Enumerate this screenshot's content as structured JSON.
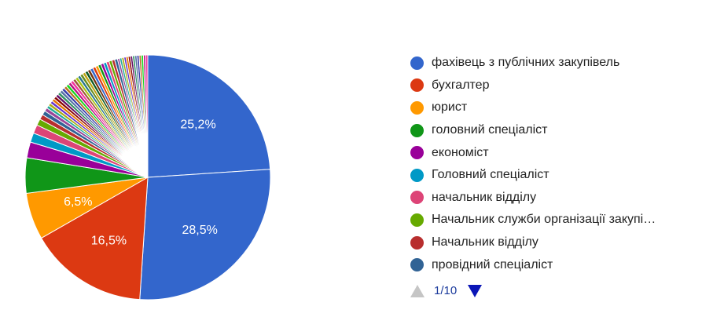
{
  "chart_data": {
    "type": "pie",
    "slices": [
      {
        "label": "фахівець з публічних закупівель",
        "value": 25.2,
        "color": "#3366cc",
        "data_label": "25,2%"
      },
      {
        "label": "",
        "value": 28.5,
        "color": "#3366cc",
        "data_label": "28,5%"
      },
      {
        "label": "бухгалтер",
        "value": 16.5,
        "color": "#dc3912",
        "data_label": "16,5%"
      },
      {
        "label": "юрист",
        "value": 6.5,
        "color": "#ff9900",
        "data_label": "6,5%"
      },
      {
        "label": "головний спеціаліст",
        "value": 4.9,
        "color": "#109618",
        "data_label": ""
      },
      {
        "label": "економіст",
        "value": 2.2,
        "color": "#990099",
        "data_label": ""
      },
      {
        "label": "Головний спеціаліст",
        "value": 1.3,
        "color": "#0099c6",
        "data_label": ""
      },
      {
        "label": "начальник відділу",
        "value": 1.2,
        "color": "#dd4477",
        "data_label": ""
      },
      {
        "label": "Начальник служби організації закупі…",
        "value": 0.9,
        "color": "#66aa00",
        "data_label": ""
      },
      {
        "label": "Начальник відділу",
        "value": 0.7,
        "color": "#b82e2e",
        "data_label": ""
      },
      {
        "label": "провідний спеціаліст",
        "value": 0.6,
        "color": "#316395",
        "data_label": ""
      },
      {
        "label": "",
        "value": 0.5,
        "color": "#994499",
        "data_label": ""
      },
      {
        "label": "",
        "value": 0.4,
        "color": "#22aa99",
        "data_label": ""
      },
      {
        "label": "",
        "value": 0.4,
        "color": "#aaaa11",
        "data_label": ""
      },
      {
        "label": "",
        "value": 0.4,
        "color": "#6633cc",
        "data_label": ""
      },
      {
        "label": "",
        "value": 0.4,
        "color": "#e67300",
        "data_label": ""
      },
      {
        "label": "",
        "value": 0.4,
        "color": "#8b0707",
        "data_label": ""
      },
      {
        "label": "",
        "value": 0.4,
        "color": "#651067",
        "data_label": ""
      },
      {
        "label": "",
        "value": 0.4,
        "color": "#329262",
        "data_label": ""
      },
      {
        "label": "",
        "value": 0.4,
        "color": "#5574a6",
        "data_label": ""
      },
      {
        "label": "",
        "value": 0.4,
        "color": "#3b3eac",
        "data_label": ""
      },
      {
        "label": "",
        "value": 0.4,
        "color": "#b77322",
        "data_label": ""
      },
      {
        "label": "",
        "value": 0.4,
        "color": "#16d620",
        "data_label": ""
      },
      {
        "label": "",
        "value": 0.4,
        "color": "#b91383",
        "data_label": ""
      },
      {
        "label": "",
        "value": 0.4,
        "color": "#f4359e",
        "data_label": ""
      },
      {
        "label": "",
        "value": 0.4,
        "color": "#9c5935",
        "data_label": ""
      },
      {
        "label": "",
        "value": 0.4,
        "color": "#a9c413",
        "data_label": ""
      },
      {
        "label": "",
        "value": 0.4,
        "color": "#2a778d",
        "data_label": ""
      },
      {
        "label": "",
        "value": 0.4,
        "color": "#668d1c",
        "data_label": ""
      },
      {
        "label": "",
        "value": 0.4,
        "color": "#bea413",
        "data_label": ""
      },
      {
        "label": "",
        "value": 0.4,
        "color": "#0c5922",
        "data_label": ""
      },
      {
        "label": "",
        "value": 0.4,
        "color": "#743411",
        "data_label": ""
      },
      {
        "label": "",
        "value": 0.4,
        "color": "#3366cc",
        "data_label": ""
      },
      {
        "label": "",
        "value": 0.4,
        "color": "#dc3912",
        "data_label": ""
      },
      {
        "label": "",
        "value": 0.4,
        "color": "#ff9900",
        "data_label": ""
      },
      {
        "label": "",
        "value": 0.4,
        "color": "#109618",
        "data_label": ""
      },
      {
        "label": "",
        "value": 0.4,
        "color": "#990099",
        "data_label": ""
      },
      {
        "label": "",
        "value": 0.4,
        "color": "#0099c6",
        "data_label": ""
      },
      {
        "label": "",
        "value": 0.4,
        "color": "#dd4477",
        "data_label": ""
      },
      {
        "label": "",
        "value": 0.4,
        "color": "#66aa00",
        "data_label": ""
      },
      {
        "label": "",
        "value": 0.4,
        "color": "#b82e2e",
        "data_label": ""
      },
      {
        "label": "",
        "value": 0.4,
        "color": "#316395",
        "data_label": ""
      },
      {
        "label": "",
        "value": 0.3,
        "color": "#994499",
        "data_label": ""
      },
      {
        "label": "",
        "value": 0.3,
        "color": "#22aa99",
        "data_label": ""
      },
      {
        "label": "",
        "value": 0.3,
        "color": "#aaaa11",
        "data_label": ""
      },
      {
        "label": "",
        "value": 0.3,
        "color": "#6633cc",
        "data_label": ""
      },
      {
        "label": "",
        "value": 0.3,
        "color": "#e67300",
        "data_label": ""
      },
      {
        "label": "",
        "value": 0.3,
        "color": "#8b0707",
        "data_label": ""
      },
      {
        "label": "",
        "value": 0.3,
        "color": "#651067",
        "data_label": ""
      },
      {
        "label": "",
        "value": 0.3,
        "color": "#329262",
        "data_label": ""
      },
      {
        "label": "",
        "value": 0.3,
        "color": "#5574a6",
        "data_label": ""
      },
      {
        "label": "",
        "value": 0.3,
        "color": "#3b3eac",
        "data_label": ""
      },
      {
        "label": "",
        "value": 0.3,
        "color": "#b77322",
        "data_label": ""
      },
      {
        "label": "",
        "value": 0.3,
        "color": "#16d620",
        "data_label": ""
      },
      {
        "label": "",
        "value": 0.3,
        "color": "#b91383",
        "data_label": ""
      },
      {
        "label": "",
        "value": 0.3,
        "color": "#f4359e",
        "data_label": ""
      }
    ],
    "legend_position": "right",
    "legend_items": [
      {
        "label": "фахівець з публічних закупівель",
        "color": "#3366cc"
      },
      {
        "label": "бухгалтер",
        "color": "#dc3912"
      },
      {
        "label": "юрист",
        "color": "#ff9900"
      },
      {
        "label": "головний спеціаліст",
        "color": "#109618"
      },
      {
        "label": "економіст",
        "color": "#990099"
      },
      {
        "label": "Головний спеціаліст",
        "color": "#0099c6"
      },
      {
        "label": "начальник відділу",
        "color": "#dd4477"
      },
      {
        "label": "Начальник служби організації закупі…",
        "color": "#66aa00"
      },
      {
        "label": "Начальник відділу",
        "color": "#b82e2e"
      },
      {
        "label": "провідний спеціаліст",
        "color": "#316395"
      }
    ]
  },
  "legend_pager": {
    "page_text": "1/10",
    "prev_icon": "triangle-up-icon",
    "next_icon": "triangle-down-icon",
    "prev_color": "#c5c5c5",
    "next_color": "#0b16b7"
  }
}
